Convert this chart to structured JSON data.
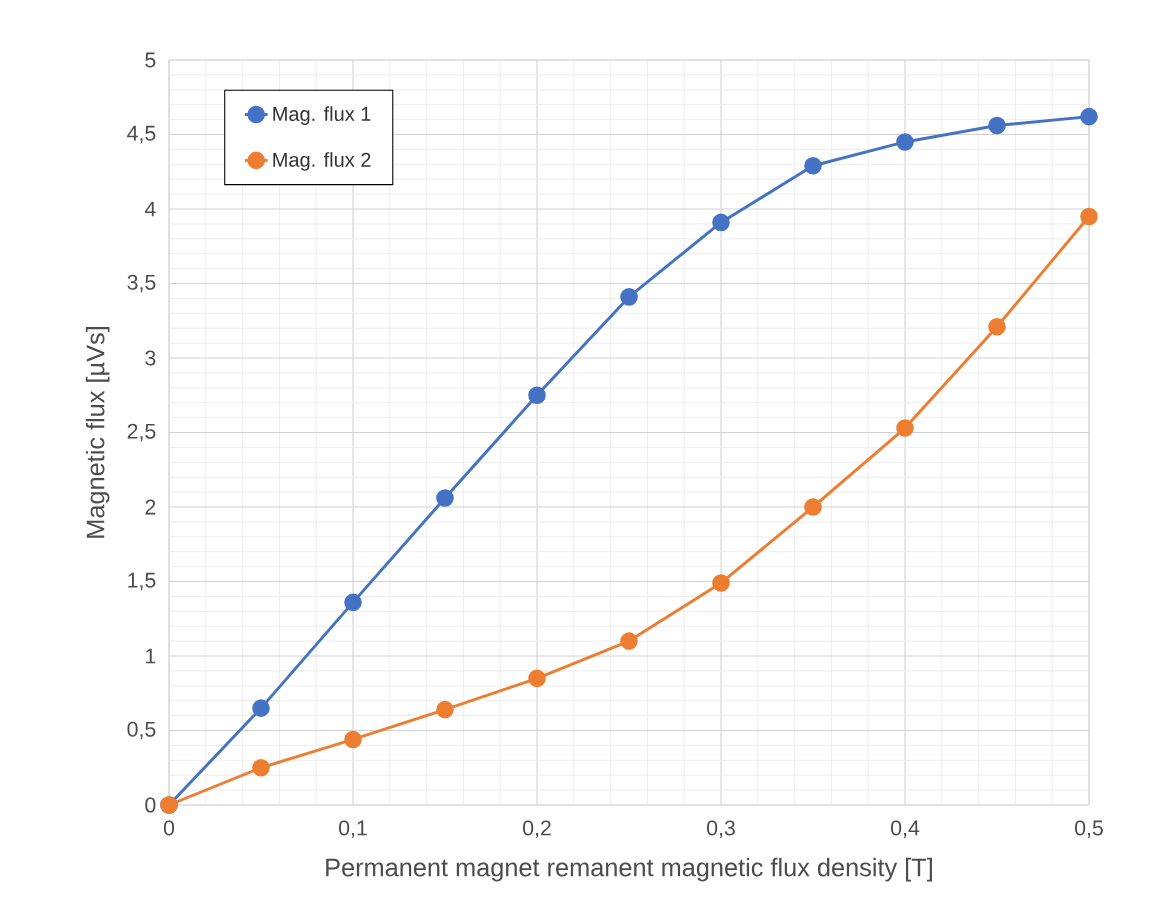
{
  "chart_data": {
    "type": "line",
    "xlabel": "Permanent magnet remanent magnetic flux density [T]",
    "ylabel": "Magnetic flux [µVs]",
    "x": [
      0,
      0.05,
      0.1,
      0.15,
      0.2,
      0.25,
      0.3,
      0.35,
      0.4,
      0.45,
      0.5
    ],
    "series": [
      {
        "name": "Mag. flux 1",
        "color": "#4472c4",
        "values": [
          0,
          0.65,
          1.36,
          2.06,
          2.75,
          3.41,
          3.91,
          4.29,
          4.45,
          4.56,
          4.62
        ]
      },
      {
        "name": "Mag. flux 2",
        "color": "#ed7d31",
        "values": [
          0,
          0.25,
          0.44,
          0.64,
          0.85,
          1.1,
          1.49,
          2.0,
          2.53,
          3.21,
          3.95
        ]
      }
    ],
    "xlim": [
      0,
      0.5
    ],
    "ylim": [
      0,
      5
    ],
    "xticks": [
      0,
      {
        "value": 0.1,
        "label": "0,1"
      },
      {
        "value": 0.2,
        "label": "0,2"
      },
      {
        "value": 0.3,
        "label": "0,3"
      },
      {
        "value": 0.4,
        "label": "0,4"
      },
      {
        "value": 0.5,
        "label": "0,5"
      }
    ],
    "yticks": [
      0,
      {
        "value": 0.5,
        "label": "0,5"
      },
      1,
      {
        "value": 1.5,
        "label": "1,5"
      },
      2,
      {
        "value": 2.5,
        "label": "2,5"
      },
      3,
      {
        "value": 3.5,
        "label": "3,5"
      },
      4,
      {
        "value": 4.5,
        "label": "4,5"
      },
      5
    ],
    "grid": true,
    "legend": "top left",
    "marker": "circle",
    "line_style": "solid"
  }
}
